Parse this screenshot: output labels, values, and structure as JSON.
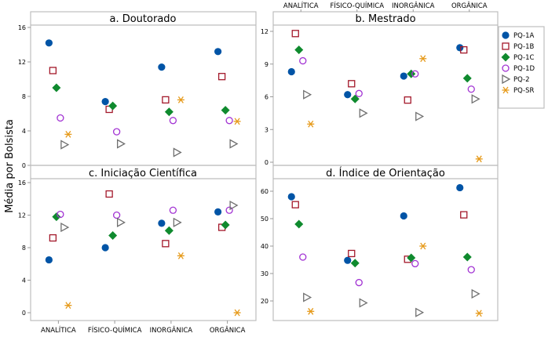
{
  "chart_data": {
    "type": "scatter",
    "ylabel": "Média por Bolsista",
    "xlabel": "",
    "categories": [
      "ANALÍTICA",
      "FÍSICO-QUÍMICA",
      "INORGÂNICA",
      "ORGÂNICA"
    ],
    "legend": {
      "placement": "right",
      "entries": [
        {
          "name": "PQ-1A",
          "marker": "filled-circle",
          "color": "#0054a6"
        },
        {
          "name": "PQ-1B",
          "marker": "open-square",
          "color": "#a3182a"
        },
        {
          "name": "PQ-1C",
          "marker": "filled-diamond",
          "color": "#0f8a2e"
        },
        {
          "name": "PQ-1D",
          "marker": "open-circle",
          "color": "#a233d3"
        },
        {
          "name": "PQ-2",
          "marker": "open-triangle-right",
          "color": "#6f6f6f"
        },
        {
          "name": "PQ-SR",
          "marker": "asterisk",
          "color": "#e69a1a"
        }
      ]
    },
    "panels": [
      {
        "title": "a. Doutorado",
        "ylim": [
          0,
          16
        ],
        "yticks": [
          0,
          4,
          8,
          12,
          16
        ],
        "series": [
          {
            "name": "PQ-1A",
            "values": [
              14.2,
              7.4,
              11.4,
              13.2
            ]
          },
          {
            "name": "PQ-1B",
            "values": [
              11.0,
              6.5,
              7.6,
              10.3
            ]
          },
          {
            "name": "PQ-1C",
            "values": [
              9.0,
              6.9,
              6.2,
              6.4
            ]
          },
          {
            "name": "PQ-1D",
            "values": [
              5.5,
              3.9,
              5.2,
              5.2
            ]
          },
          {
            "name": "PQ-2",
            "values": [
              2.4,
              2.5,
              1.5,
              2.5
            ]
          },
          {
            "name": "PQ-SR",
            "values": [
              3.6,
              null,
              7.6,
              5.1
            ]
          }
        ]
      },
      {
        "title": "b. Mestrado",
        "ylim": [
          0,
          12
        ],
        "yticks": [
          0,
          3,
          6,
          9,
          12
        ],
        "series": [
          {
            "name": "PQ-1A",
            "values": [
              8.3,
              6.2,
              7.9,
              10.5
            ]
          },
          {
            "name": "PQ-1B",
            "values": [
              11.8,
              7.2,
              5.7,
              10.3
            ]
          },
          {
            "name": "PQ-1C",
            "values": [
              10.3,
              5.8,
              8.1,
              7.7
            ]
          },
          {
            "name": "PQ-1D",
            "values": [
              9.3,
              6.3,
              8.1,
              6.7
            ]
          },
          {
            "name": "PQ-2",
            "values": [
              6.2,
              4.5,
              4.2,
              5.8
            ]
          },
          {
            "name": "PQ-SR",
            "values": [
              3.5,
              null,
              9.5,
              0.3
            ]
          }
        ]
      },
      {
        "title": "c. Iniciação Científica",
        "ylim": [
          0,
          16
        ],
        "yticks": [
          0,
          4,
          8,
          12,
          16
        ],
        "series": [
          {
            "name": "PQ-1A",
            "values": [
              6.5,
              8.0,
              11.0,
              12.4
            ]
          },
          {
            "name": "PQ-1B",
            "values": [
              9.2,
              14.6,
              8.5,
              10.5
            ]
          },
          {
            "name": "PQ-1C",
            "values": [
              11.8,
              9.5,
              10.1,
              10.8
            ]
          },
          {
            "name": "PQ-1D",
            "values": [
              12.1,
              12.0,
              12.6,
              12.6
            ]
          },
          {
            "name": "PQ-2",
            "values": [
              10.5,
              11.1,
              11.1,
              13.2
            ]
          },
          {
            "name": "PQ-SR",
            "values": [
              0.9,
              null,
              7.0,
              0.0
            ]
          }
        ]
      },
      {
        "title": "d. Índice de Orientação",
        "ylim": [
          13,
          65
        ],
        "yticks": [
          20,
          30,
          40,
          50,
          60
        ],
        "series": [
          {
            "name": "PQ-1A",
            "values": [
              58.0,
              34.8,
              51.0,
              61.3
            ]
          },
          {
            "name": "PQ-1B",
            "values": [
              55.1,
              37.3,
              35.2,
              51.4
            ]
          },
          {
            "name": "PQ-1C",
            "values": [
              48.0,
              33.8,
              35.7,
              36.0
            ]
          },
          {
            "name": "PQ-1D",
            "values": [
              36.0,
              26.7,
              33.6,
              31.4
            ]
          },
          {
            "name": "PQ-2",
            "values": [
              21.3,
              19.3,
              15.8,
              22.6
            ]
          },
          {
            "name": "PQ-SR",
            "values": [
              16.2,
              null,
              40.0,
              15.5
            ]
          }
        ]
      }
    ]
  }
}
